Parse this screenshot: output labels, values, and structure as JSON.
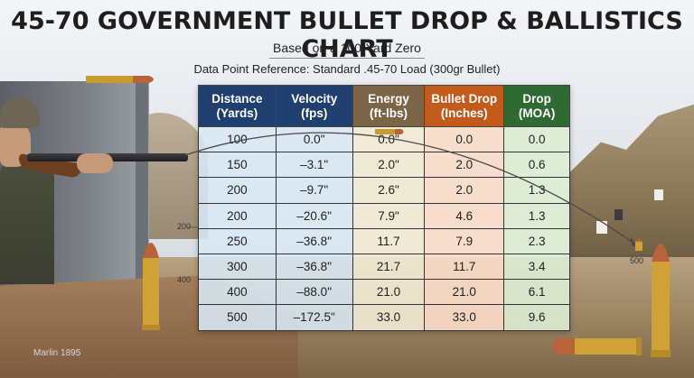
{
  "header": {
    "title": "45-70 GOVERNMENT BULLET DROP & BALLISTICS CHART",
    "subtitle": "Based on a 100-Yard Zero",
    "reference": "Data Point Reference: Standard .45-70 Load (300gr Bullet)"
  },
  "table": {
    "headers": [
      [
        "Distance",
        "(Yards)"
      ],
      [
        "Velocity",
        "(fps)"
      ],
      [
        "Energy",
        "(ft-lbs)"
      ],
      [
        "Bullet Drop",
        "(Inches)"
      ],
      [
        "Drop",
        "(MOA)"
      ]
    ],
    "rows": [
      [
        "100",
        "0.0\"",
        "0.0\"",
        "0.0",
        "0.0"
      ],
      [
        "150",
        "–3.1\"",
        "2.0\"",
        "2.0",
        "0.6"
      ],
      [
        "200",
        "–9.7\"",
        "2.6\"",
        "2.0",
        "1.3"
      ],
      [
        "200",
        "–20.6\"",
        "7.9\"",
        "4.6",
        "1.3"
      ],
      [
        "250",
        "–36.8\"",
        "11.7",
        "7.9",
        "2.3"
      ],
      [
        "300",
        "–36.8\"",
        "21.7",
        "11.7",
        "3.4"
      ],
      [
        "400",
        "–88.0\"",
        "21.0",
        "21.0",
        "6.1"
      ],
      [
        "500",
        "–172.5\"",
        "33.0",
        "33.0",
        "9.6"
      ]
    ],
    "colors": {
      "distance_header": "#1f3f6e",
      "velocity_header": "#1f3f6e",
      "energy_header": "#7b6546",
      "drop_header": "#c25a1c",
      "moa_header": "#2f6a33"
    }
  },
  "axis": {
    "label_200": "200",
    "label_400": "400",
    "label_500": "500"
  },
  "brand": "Marlin 1895",
  "icons": [
    "rifle-icon",
    "bullet-icon",
    "trajectory-curve-icon"
  ]
}
